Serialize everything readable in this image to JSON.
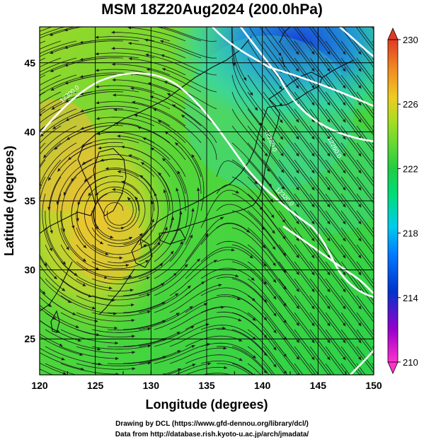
{
  "title": "MSM 18Z20Aug2024 (200.0hPa)",
  "x_axis": {
    "label": "Longitude (degrees)",
    "ticks": [
      "120",
      "125",
      "130",
      "135",
      "140",
      "145",
      "150"
    ],
    "range": [
      120,
      150
    ]
  },
  "y_axis": {
    "label": "Latitude  (degrees)",
    "ticks": [
      "25",
      "30",
      "35",
      "40",
      "45"
    ],
    "range": [
      22.4,
      47.6
    ]
  },
  "colorbar": {
    "ticks": [
      "230",
      "226",
      "222",
      "218",
      "214",
      "210"
    ],
    "range": [
      210,
      230
    ],
    "colors": [
      "#ff33cc",
      "#9900cc",
      "#0033cc",
      "#0077ff",
      "#00ccee",
      "#00dd77",
      "#22cc44",
      "#66d933",
      "#aadd22",
      "#eecc22",
      "#f08a22",
      "#e23a22"
    ]
  },
  "contour_labels": [
    "12260.0",
    "12280.0",
    "12300.0",
    "12320.0",
    "12340.0"
  ],
  "footer": {
    "line1": "Drawing by DCL (https://www.gfd-dennou.org/library/dcl/)",
    "line2": "Data from http://database.rish.kyoto-u.ac.jp/arch/jmadata/"
  },
  "colors": {
    "land_outline": "#111111",
    "contour": "#ffffff",
    "streamline": "#1a1a1a",
    "grid": "#000000"
  }
}
